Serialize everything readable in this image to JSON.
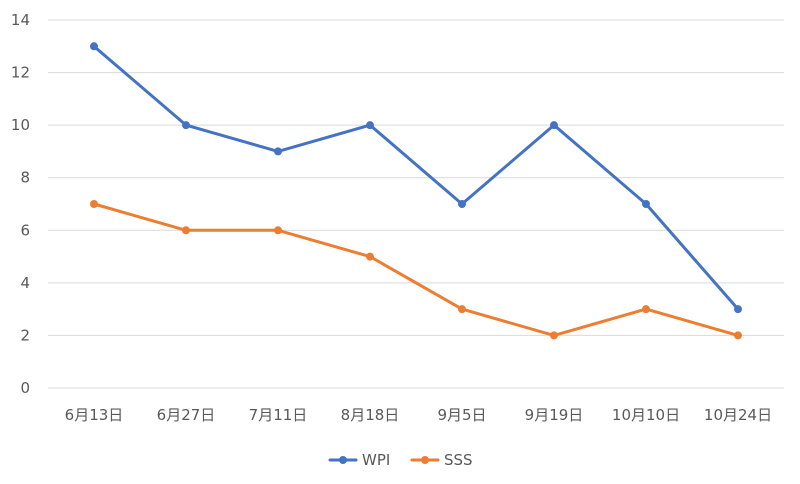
{
  "chart_data": {
    "type": "line",
    "title": "",
    "xlabel": "",
    "ylabel": "",
    "categories": [
      "6月13日",
      "6月27日",
      "7月11日",
      "8月18日",
      "9月5日",
      "9月19日",
      "10月10日",
      "10月24日"
    ],
    "ylim": [
      0,
      14
    ],
    "yticks": [
      0,
      2,
      4,
      6,
      8,
      10,
      12,
      14
    ],
    "grid": true,
    "legend_position": "bottom",
    "series": [
      {
        "name": "WPI",
        "color": "#4472C4",
        "values": [
          13,
          10,
          9,
          10,
          7,
          10,
          7,
          3
        ]
      },
      {
        "name": "SSS",
        "color": "#ED7D31",
        "values": [
          7,
          6,
          6,
          5,
          3,
          2,
          3,
          2
        ]
      }
    ]
  }
}
